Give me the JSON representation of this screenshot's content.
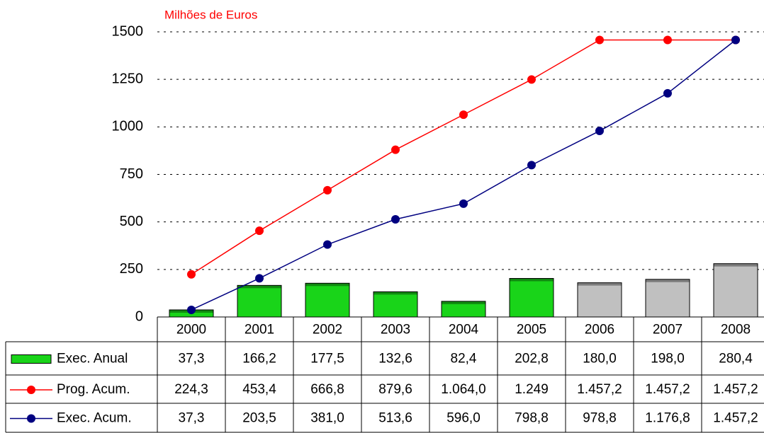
{
  "chart_data": {
    "type": "bar-line-table",
    "y_label": "Milhões de Euros",
    "categories": [
      "2000",
      "2001",
      "2002",
      "2003",
      "2004",
      "2005",
      "2006",
      "2007",
      "2008"
    ],
    "series": [
      {
        "name": "Exec. Anual",
        "type": "bar",
        "colors": [
          "#19d419",
          "#19d419",
          "#19d419",
          "#19d419",
          "#19d419",
          "#19d419",
          "#c0c0c0",
          "#c0c0c0",
          "#c0c0c0"
        ],
        "values": [
          37.3,
          166.2,
          177.5,
          132.6,
          82.4,
          202.8,
          180.0,
          198.0,
          280.4
        ],
        "value_labels": [
          "37,3",
          "166,2",
          "177,5",
          "132,6",
          "82,4",
          "202,8",
          "180,0",
          "198,0",
          "280,4"
        ]
      },
      {
        "name": "Prog. Acum.",
        "type": "line",
        "color": "#ff0000",
        "values": [
          224.3,
          453.4,
          666.8,
          879.6,
          1064.0,
          1249,
          1457.2,
          1457.2,
          1457.2
        ],
        "value_labels": [
          "224,3",
          "453,4",
          "666,8",
          "879,6",
          "1.064,0",
          "1.249",
          "1.457,2",
          "1.457,2",
          "1.457,2"
        ]
      },
      {
        "name": "Exec. Acum.",
        "type": "line",
        "color": "#000080",
        "values": [
          37.3,
          203.5,
          381.0,
          513.6,
          596.0,
          798.8,
          978.8,
          1176.8,
          1457.2
        ],
        "value_labels": [
          "37,3",
          "203,5",
          "381,0",
          "513,6",
          "596,0",
          "798,8",
          "978,8",
          "1.176,8",
          "1.457,2"
        ]
      }
    ],
    "ylim": [
      0,
      1500
    ],
    "yticks": [
      0,
      250,
      500,
      750,
      1000,
      1250,
      1500
    ],
    "grid": true
  }
}
